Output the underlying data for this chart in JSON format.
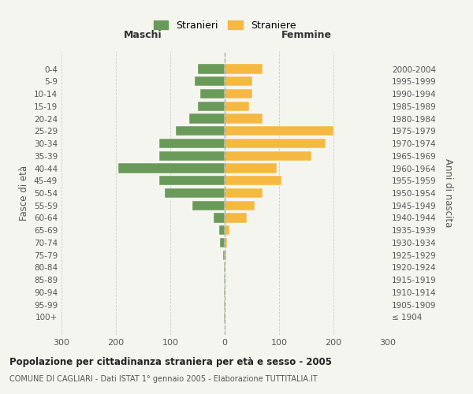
{
  "age_groups": [
    "0-4",
    "5-9",
    "10-14",
    "15-19",
    "20-24",
    "25-29",
    "30-34",
    "35-39",
    "40-44",
    "45-49",
    "50-54",
    "55-59",
    "60-64",
    "65-69",
    "70-74",
    "75-79",
    "80-84",
    "85-89",
    "90-94",
    "95-99",
    "100+"
  ],
  "birth_years": [
    "2000-2004",
    "1995-1999",
    "1990-1994",
    "1985-1989",
    "1980-1984",
    "1975-1979",
    "1970-1974",
    "1965-1969",
    "1960-1964",
    "1955-1959",
    "1950-1954",
    "1945-1949",
    "1940-1944",
    "1935-1939",
    "1930-1934",
    "1925-1929",
    "1920-1924",
    "1915-1919",
    "1910-1914",
    "1905-1909",
    "≤ 1904"
  ],
  "males": [
    50,
    55,
    45,
    50,
    65,
    90,
    120,
    120,
    195,
    120,
    110,
    60,
    20,
    10,
    8,
    3,
    1,
    1,
    1,
    1,
    1
  ],
  "females": [
    70,
    50,
    50,
    45,
    70,
    200,
    185,
    160,
    95,
    105,
    70,
    55,
    40,
    8,
    5,
    3,
    1,
    1,
    1,
    1,
    1
  ],
  "male_color": "#6a9a5a",
  "female_color": "#f5b942",
  "male_label": "Stranieri",
  "female_label": "Straniere",
  "xlim": 300,
  "title": "Popolazione per cittadinanza straniera per età e sesso - 2005",
  "subtitle": "COMUNE DI CAGLIARI - Dati ISTAT 1° gennaio 2005 - Elaborazione TUTTITALIA.IT",
  "xlabel_left": "Maschi",
  "xlabel_right": "Femmine",
  "ylabel_left": "Fasce di età",
  "ylabel_right": "Anni di nascita",
  "background_color": "#f5f5f0",
  "grid_color": "#cccccc"
}
